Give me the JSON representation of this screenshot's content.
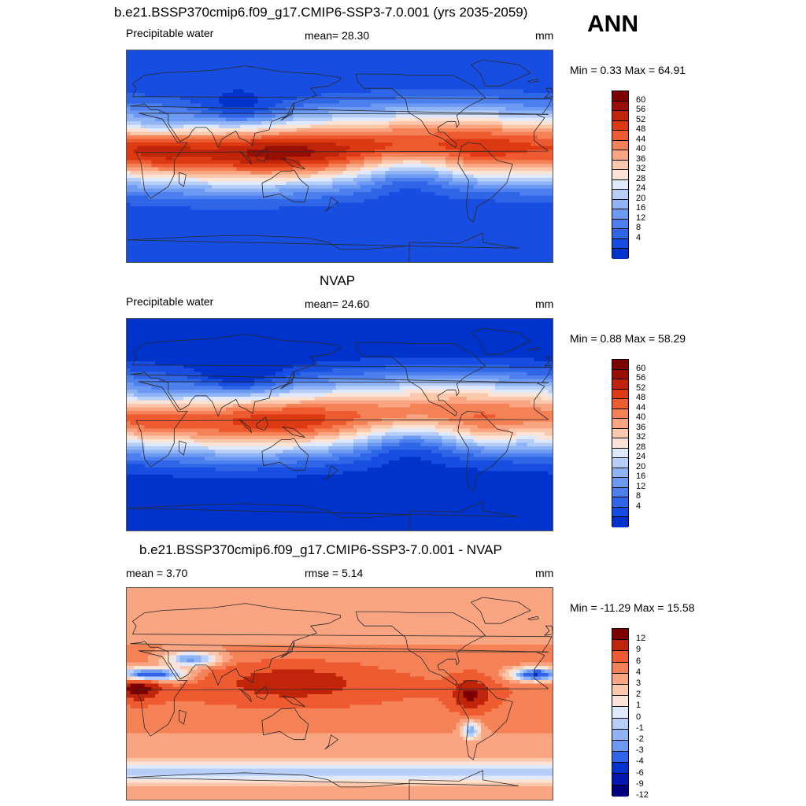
{
  "header": {
    "title": "b.e21.BSSP370cmip6.f09_g17.CMIP6-SSP3-7.0.001 (yrs 2035-2059)",
    "season": "ANN"
  },
  "colors": {
    "abs_scale": [
      "#00007f",
      "#0018b0",
      "#0033cc",
      "#174de0",
      "#2f66e8",
      "#4d80ee",
      "#6c9af2",
      "#8fb4f5",
      "#b7cff8",
      "#dfe9fb",
      "#fbe4d6",
      "#fcc8ac",
      "#f9a581",
      "#f58157",
      "#ee5b31",
      "#dd3a14",
      "#c0250a",
      "#990e05",
      "#7c0000"
    ],
    "diff_scale": [
      "#00007f",
      "#0018b0",
      "#0033cc",
      "#2f66e8",
      "#6c9af2",
      "#8fb4f5",
      "#b7cff8",
      "#dfe9fb",
      "#fbe4d6",
      "#fcc8ac",
      "#f9a581",
      "#f58157",
      "#ee5b31",
      "#c0250a",
      "#7c0000"
    ],
    "coast": "#2a2a2a"
  },
  "panels": [
    {
      "heading": "",
      "left_label": "Precipitable water",
      "mid_label": "mean=  28.30",
      "units": "mm",
      "minmax": "Min =   0.33 Max =  64.91",
      "levels": [
        "60",
        "56",
        "52",
        "48",
        "44",
        "40",
        "36",
        "32",
        "28",
        "24",
        "20",
        "16",
        "12",
        "8",
        "4"
      ]
    },
    {
      "heading": "NVAP",
      "left_label": "Precipitable water",
      "mid_label": "mean=  24.60",
      "units": "mm",
      "minmax": "Min =   0.88 Max =  58.29",
      "levels": [
        "60",
        "56",
        "52",
        "48",
        "44",
        "40",
        "36",
        "32",
        "28",
        "24",
        "20",
        "16",
        "12",
        "8",
        "4"
      ]
    },
    {
      "heading": "b.e21.BSSP370cmip6.f09_g17.CMIP6-SSP3-7.0.001 - NVAP",
      "left_label": "mean =   3.70",
      "mid_label": "rmse =   5.14",
      "units": "mm",
      "minmax": "Min = -11.29 Max =  15.58",
      "levels": [
        "12",
        "9",
        "6",
        "4",
        "3",
        "2",
        "1",
        "0",
        "-1",
        "-2",
        "-3",
        "-4",
        "-6",
        "-9",
        "-12"
      ]
    }
  ],
  "chart_data": [
    {
      "type": "heatmap",
      "title": "b.e21.BSSP370cmip6.f09_g17.CMIP6-SSP3-7.0.001 (yrs 2035-2059)",
      "subtitle": "Precipitable water",
      "season": "ANN",
      "units": "mm",
      "mean": 28.3,
      "min": 0.33,
      "max": 64.91,
      "contour_levels": [
        4,
        8,
        12,
        16,
        20,
        24,
        28,
        32,
        36,
        40,
        44,
        48,
        52,
        56,
        60
      ]
    },
    {
      "type": "heatmap",
      "title": "NVAP",
      "subtitle": "Precipitable water",
      "units": "mm",
      "mean": 24.6,
      "min": 0.88,
      "max": 58.29,
      "contour_levels": [
        4,
        8,
        12,
        16,
        20,
        24,
        28,
        32,
        36,
        40,
        44,
        48,
        52,
        56,
        60
      ]
    },
    {
      "type": "heatmap",
      "title": "b.e21.BSSP370cmip6.f09_g17.CMIP6-SSP3-7.0.001 - NVAP",
      "units": "mm",
      "mean": 3.7,
      "rmse": 5.14,
      "min": -11.29,
      "max": 15.58,
      "contour_levels": [
        -12,
        -9,
        -6,
        -4,
        -3,
        -2,
        -1,
        0,
        1,
        2,
        3,
        4,
        6,
        9,
        12
      ]
    }
  ]
}
